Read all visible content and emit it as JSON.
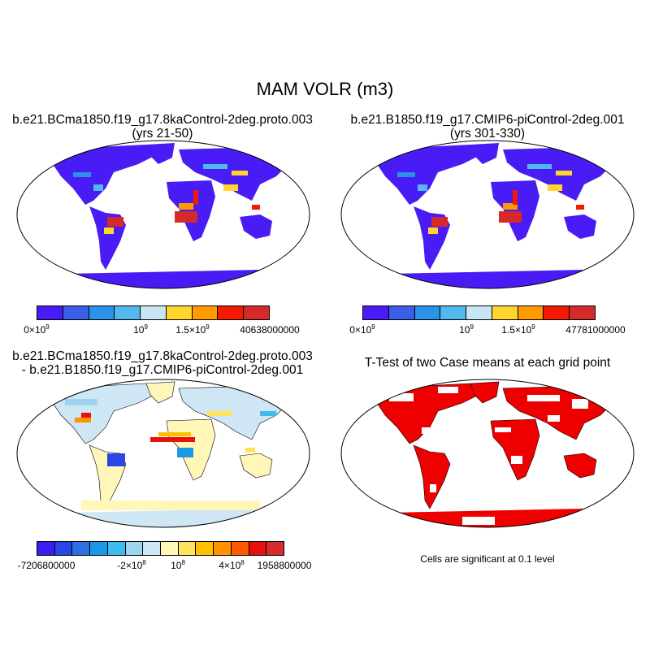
{
  "figure": {
    "title": "MAM VOLR (m3)"
  },
  "panels": {
    "top_left": {
      "title_line1": "b.e21.BCma1850.f19_g17.8kaControl-2deg.proto.003",
      "title_line2": "(yrs 21-50)",
      "colorbar": {
        "colors": [
          "#4a1cf5",
          "#3b5ee8",
          "#2a92e8",
          "#52b8ee",
          "#c8e6f4",
          "#ffd52e",
          "#ff9a00",
          "#f21b00",
          "#d42a2a"
        ],
        "ticks": [
          {
            "base": "0×10",
            "exp": "9"
          },
          {
            "base": "10",
            "exp": "9"
          },
          {
            "base": "1.5×10",
            "exp": "9"
          },
          {
            "base": "40638000000",
            "exp": ""
          }
        ]
      }
    },
    "top_right": {
      "title_line1": "b.e21.B1850.f19_g17.CMIP6-piControl-2deg.001",
      "title_line2": "(yrs 301-330)",
      "colorbar": {
        "colors": [
          "#4a1cf5",
          "#3b5ee8",
          "#2a92e8",
          "#52b8ee",
          "#c8e6f4",
          "#ffd52e",
          "#ff9a00",
          "#f21b00",
          "#d42a2a"
        ],
        "ticks": [
          {
            "base": "0×10",
            "exp": "9"
          },
          {
            "base": "10",
            "exp": "9"
          },
          {
            "base": "1.5×10",
            "exp": "9"
          },
          {
            "base": "47781000000",
            "exp": ""
          }
        ]
      }
    },
    "bottom_left": {
      "title_line1": "b.e21.BCma1850.f19_g17.8kaControl-2deg.proto.003",
      "title_line2": "- b.e21.B1850.f19_g17.CMIP6-piControl-2deg.001",
      "colorbar": {
        "colors": [
          "#3a1ef0",
          "#2b46e6",
          "#2f6fe4",
          "#1a9ae6",
          "#3fbcef",
          "#9fd4ef",
          "#cfe7f4",
          "#fff6b8",
          "#ffe35c",
          "#ffc000",
          "#ff9200",
          "#ff5a00",
          "#e6120e",
          "#d42c2c"
        ],
        "ticks": [
          {
            "base": "-7206800000",
            "exp": ""
          },
          {
            "base": "-2×10",
            "exp": "8"
          },
          {
            "base": "10",
            "exp": "8"
          },
          {
            "base": "4×10",
            "exp": "8"
          },
          {
            "base": "1958800000",
            "exp": ""
          }
        ]
      }
    },
    "bottom_right": {
      "title": "T-Test of two Case means at each grid point",
      "note": "Cells are significant at 0.1 level",
      "significant_color": "#ee0000"
    }
  },
  "map_fills": {
    "ocean": "#ffffff",
    "high_lat_land": "#4a1cf5",
    "diff_base": "#cfe7f4"
  }
}
